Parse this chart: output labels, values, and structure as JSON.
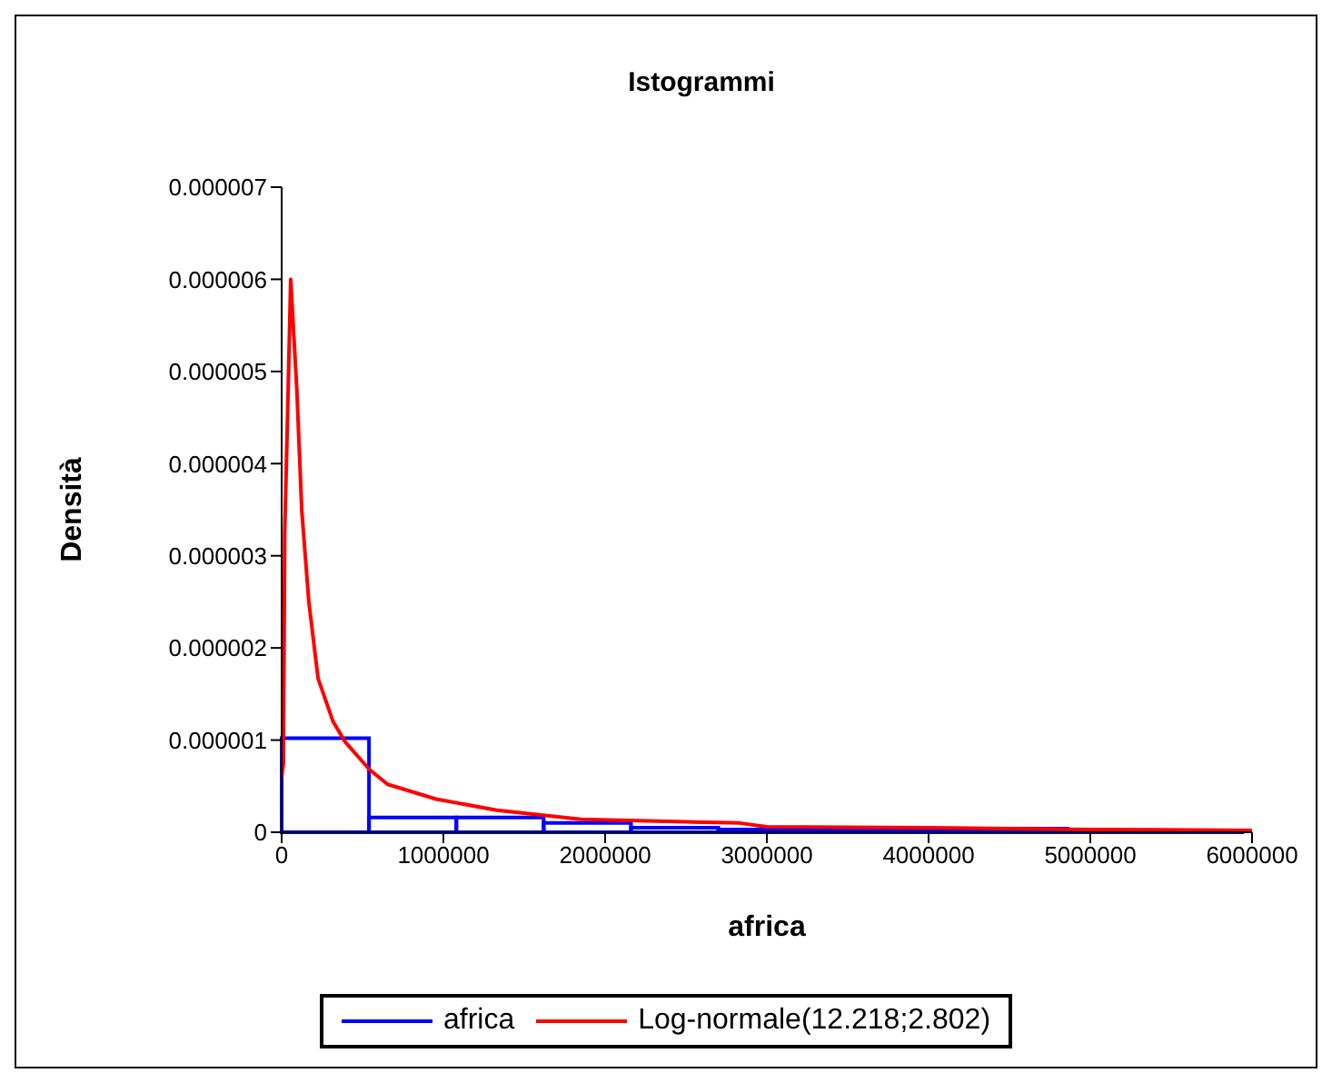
{
  "chart_data": {
    "type": "histogram",
    "title": "Istogrammi",
    "xlabel": "africa",
    "ylabel": "Densità",
    "xlim": [
      0,
      6000000
    ],
    "xticks": [
      0,
      1000000,
      2000000,
      3000000,
      4000000,
      5000000,
      6000000
    ],
    "ylim": [
      0,
      7e-06
    ],
    "yticks": [
      0,
      {
        "value": 1e-06,
        "label": "0.000001"
      },
      {
        "value": 2e-06,
        "label": "0.000002"
      },
      {
        "value": 3e-06,
        "label": "0.000003"
      },
      {
        "value": 4e-06,
        "label": "0.000004"
      },
      {
        "value": 5e-06,
        "label": "0.000005"
      },
      {
        "value": 6e-06,
        "label": "0.000006"
      },
      {
        "value": 7e-06,
        "label": "0.000007"
      }
    ],
    "legend": "bottom",
    "marker": "none",
    "line_style": "solid",
    "series": [
      {
        "name": "africa",
        "color": "#0000ff",
        "bins": [
          0,
          540000,
          1080000,
          1620000,
          2160000,
          2700000,
          3240000,
          3780000,
          4320000,
          4860000,
          5400000,
          5940000
        ],
        "values": [
          1.02e-06,
          1.6e-07,
          1.6e-07,
          1e-07,
          5e-08,
          3e-08,
          2e-08,
          2e-08,
          4e-08,
          1e-08,
          1e-08
        ]
      },
      {
        "name": "Log-normale(12.218;2.802)",
        "type": "line",
        "color": "#ff0000",
        "x": [
          0,
          11000,
          19000,
          37000,
          56000,
          75000,
          94000,
          124000,
          168000,
          225000,
          318000,
          393000,
          543000,
          655000,
          955000,
          1330000,
          1850000,
          2830000,
          3000000,
          4000000,
          5000000,
          6000000
        ],
        "values": [
          6e-07,
          7.5e-07,
          3.25e-06,
          4.56e-06,
          6e-06,
          5.4e-06,
          4.8e-06,
          3.5e-06,
          2.5e-06,
          1.67e-06,
          1.2e-06,
          9.8e-07,
          6.8e-07,
          5.2e-07,
          3.6e-07,
          2.4e-07,
          1.4e-07,
          1e-07,
          6e-08,
          5e-08,
          3e-08,
          2e-08
        ]
      }
    ]
  }
}
